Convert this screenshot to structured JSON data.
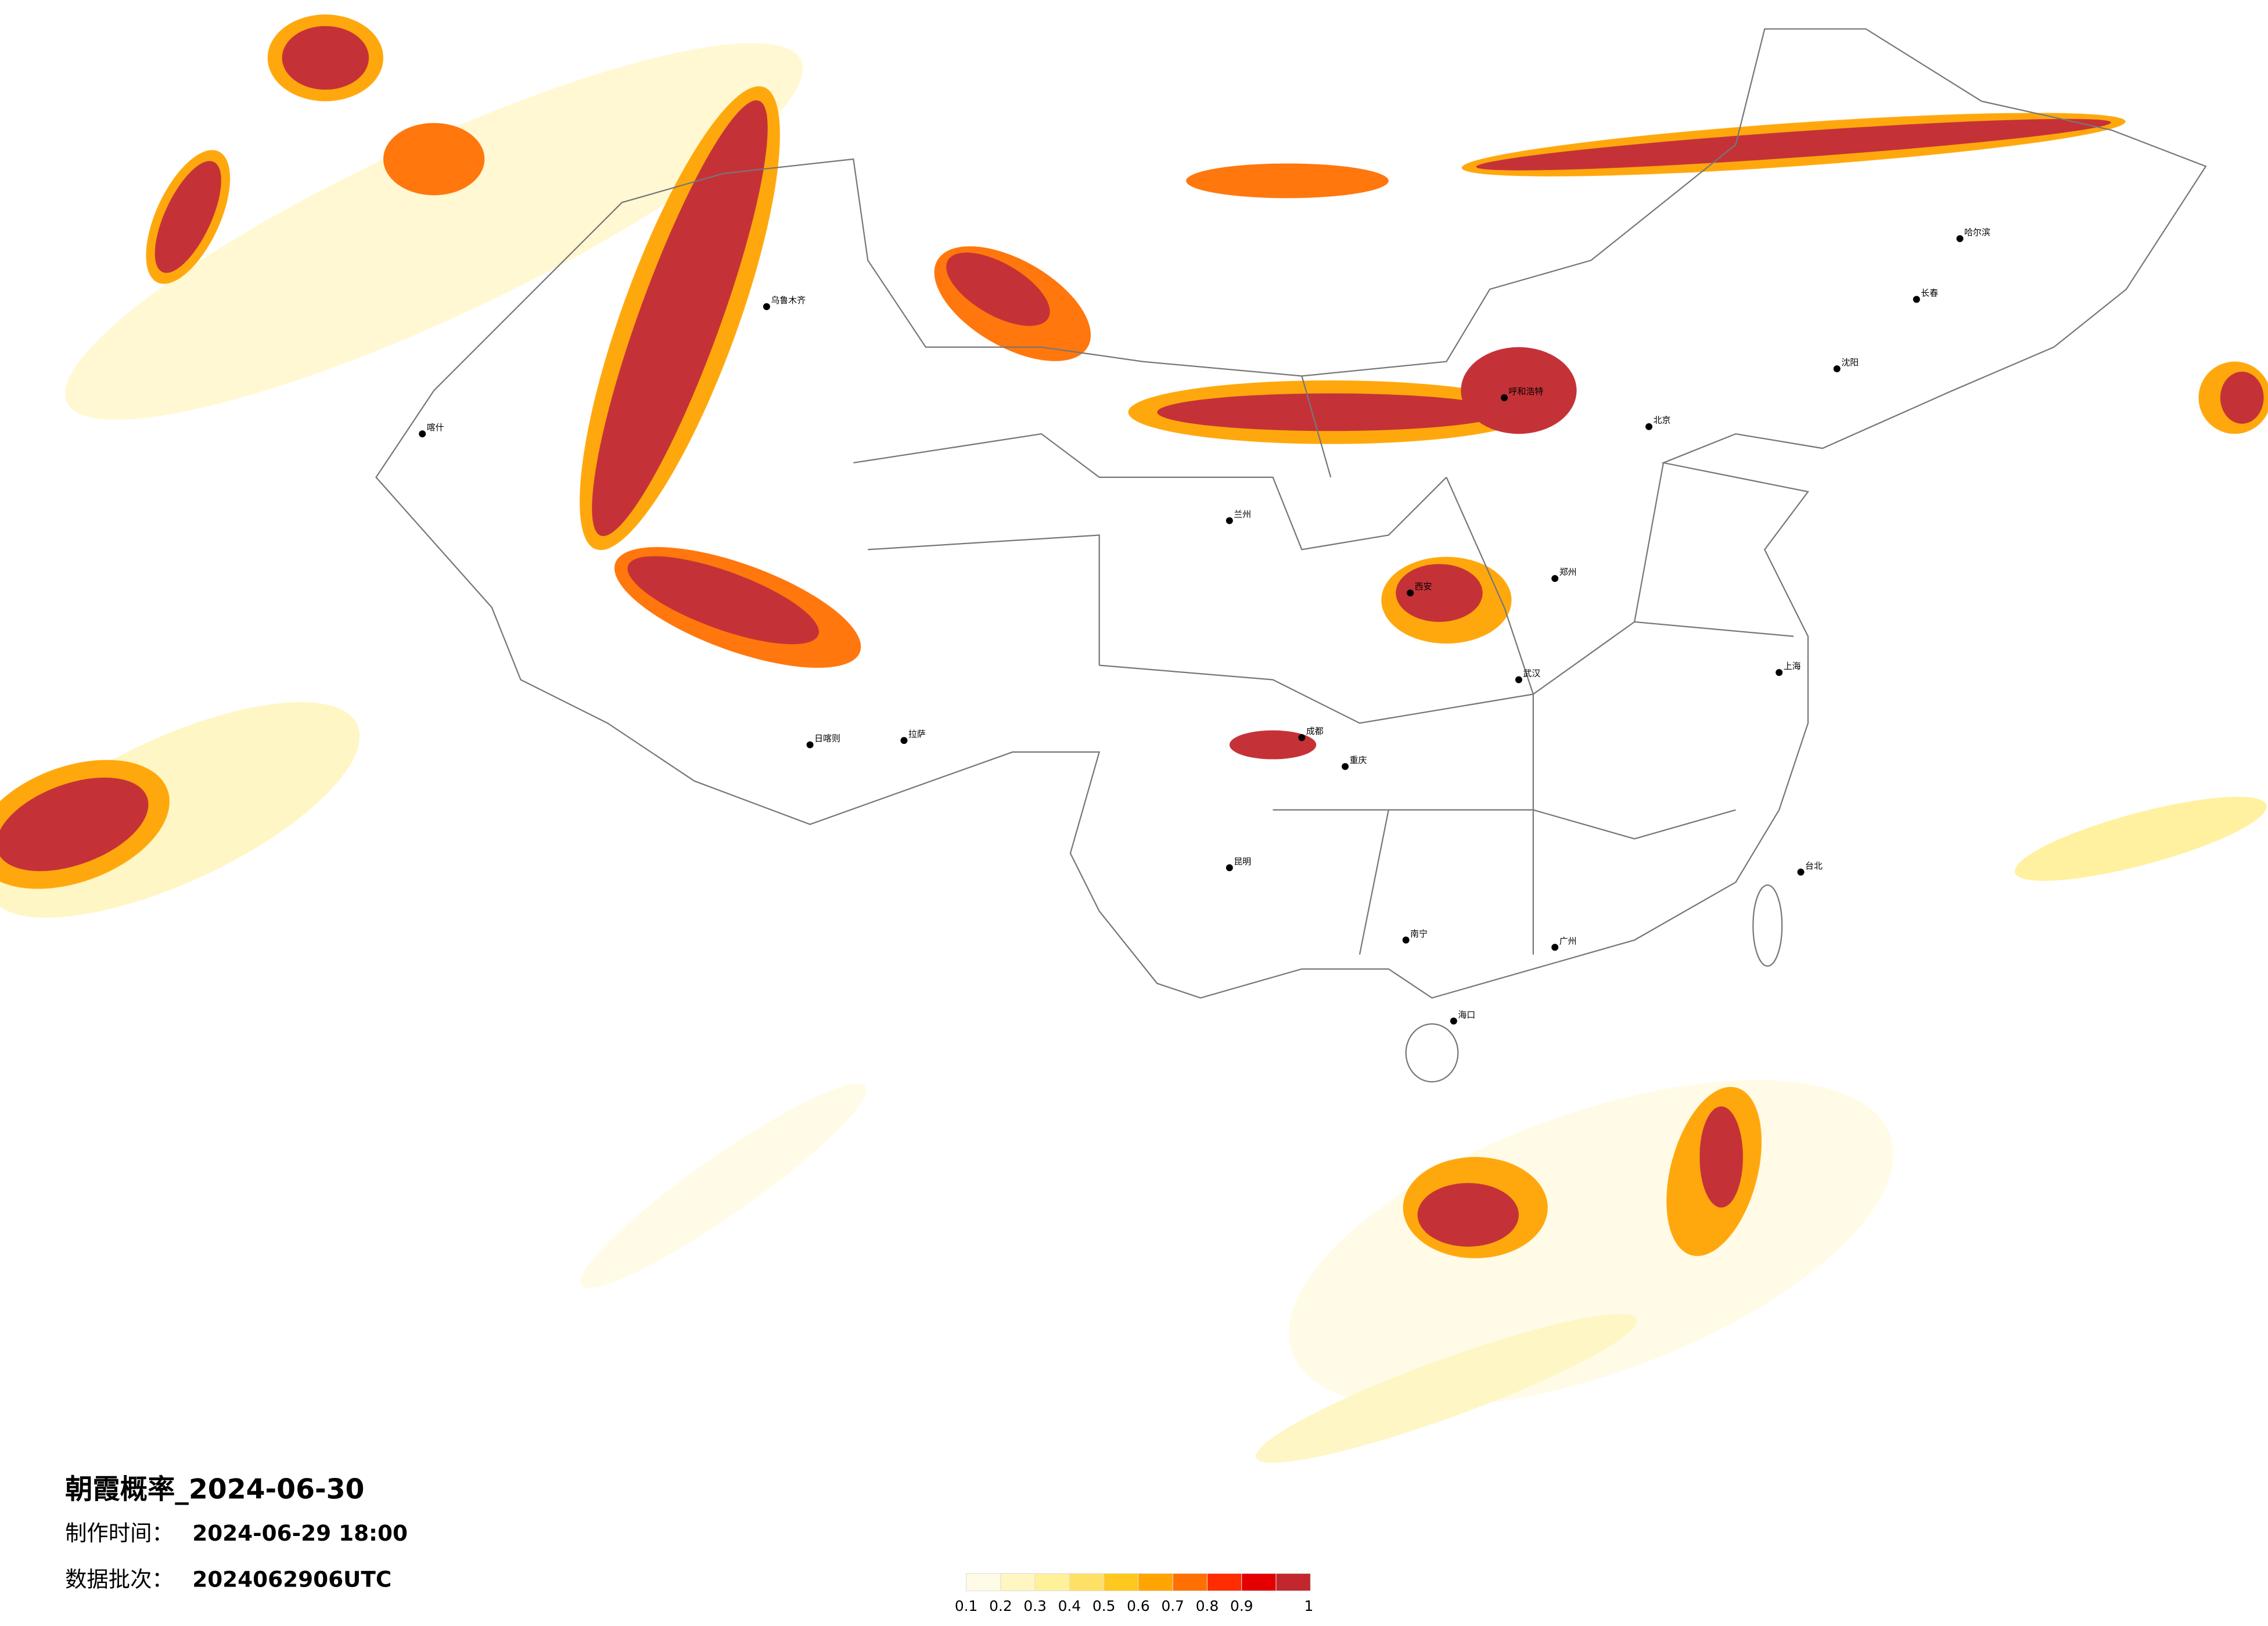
{
  "title": "朝霞概率_2024-06-30",
  "info": [
    {
      "label": "制作时间：",
      "value": "2024-06-29 18:00"
    },
    {
      "label": "数据批次：",
      "value": "2024062906UTC"
    }
  ],
  "legend": {
    "labels": [
      0.1,
      0.2,
      0.3,
      0.4,
      0.5,
      0.6,
      0.7,
      0.8,
      0.9,
      1
    ],
    "colors": [
      "#fffbe6",
      "#fff6c2",
      "#fff19a",
      "#ffe066",
      "#ffc81e",
      "#ffa400",
      "#ff7000",
      "#ff2d00",
      "#e40000",
      "#c1272d"
    ]
  },
  "cities": [
    "乌鲁木齐",
    "喀什",
    "拉萨",
    "日喀则",
    "兰州",
    "西安",
    "成都",
    "重庆",
    "昆明",
    "南宁",
    "广州",
    "海口",
    "台北",
    "上海",
    "郑州",
    "武汉",
    "北京",
    "呼和浩特",
    "沈阳",
    "长春",
    "哈尔滨"
  ]
}
